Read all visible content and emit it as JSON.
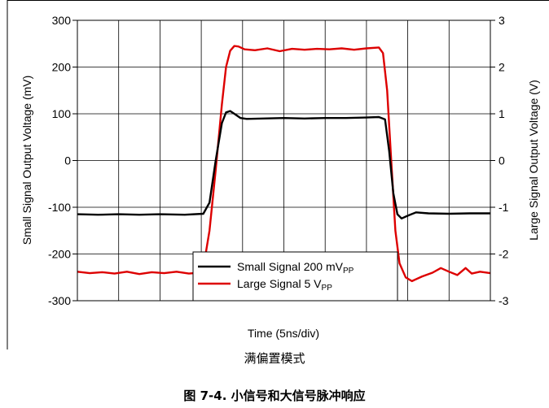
{
  "chart_data": {
    "type": "line",
    "xlabel": "Time (5ns/div)",
    "ylabel": "Small Signal Output Voltage (mV)",
    "y2label": "Large Signal Output Voltage (V)",
    "xlim": [
      0,
      10
    ],
    "ylim": [
      -300,
      300
    ],
    "y2lim": [
      -3,
      3
    ],
    "yticks": [
      "300",
      "200",
      "100",
      "0",
      "-100",
      "-200",
      "-300"
    ],
    "y2ticks": [
      "3",
      "2",
      "1",
      "0",
      "-1",
      "-2",
      "-3"
    ],
    "grid": true,
    "legend_position": "bottom-center",
    "series": [
      {
        "name_main": "Small Signal 200 mV",
        "name_sub": "PP",
        "color": "#000000",
        "axis": "left",
        "points": [
          [
            0,
            -115
          ],
          [
            0.5,
            -116
          ],
          [
            1.0,
            -115
          ],
          [
            1.5,
            -116
          ],
          [
            2.0,
            -115
          ],
          [
            2.6,
            -116
          ],
          [
            3.05,
            -114
          ],
          [
            3.2,
            -90
          ],
          [
            3.35,
            0
          ],
          [
            3.5,
            80
          ],
          [
            3.6,
            103
          ],
          [
            3.7,
            106
          ],
          [
            3.8,
            100
          ],
          [
            3.95,
            91
          ],
          [
            4.1,
            89
          ],
          [
            4.5,
            90
          ],
          [
            5.0,
            91
          ],
          [
            5.5,
            90
          ],
          [
            6.0,
            91
          ],
          [
            6.5,
            91
          ],
          [
            7.0,
            92
          ],
          [
            7.3,
            93
          ],
          [
            7.45,
            88
          ],
          [
            7.55,
            20
          ],
          [
            7.65,
            -70
          ],
          [
            7.75,
            -115
          ],
          [
            7.85,
            -124
          ],
          [
            8.0,
            -118
          ],
          [
            8.2,
            -111
          ],
          [
            8.5,
            -113
          ],
          [
            9.0,
            -114
          ],
          [
            9.5,
            -113
          ],
          [
            10,
            -113
          ]
        ]
      },
      {
        "name_main": "Large Signal 5 V",
        "name_sub": "PP",
        "color": "#dd0000",
        "axis": "right",
        "points": [
          [
            0,
            -2.38
          ],
          [
            0.3,
            -2.41
          ],
          [
            0.6,
            -2.39
          ],
          [
            0.9,
            -2.42
          ],
          [
            1.2,
            -2.38
          ],
          [
            1.5,
            -2.43
          ],
          [
            1.8,
            -2.39
          ],
          [
            2.1,
            -2.41
          ],
          [
            2.4,
            -2.38
          ],
          [
            2.7,
            -2.42
          ],
          [
            2.95,
            -2.4
          ],
          [
            3.05,
            -2.3
          ],
          [
            3.2,
            -1.5
          ],
          [
            3.35,
            -0.2
          ],
          [
            3.5,
            1.2
          ],
          [
            3.6,
            2.0
          ],
          [
            3.7,
            2.35
          ],
          [
            3.8,
            2.45
          ],
          [
            3.9,
            2.44
          ],
          [
            4.05,
            2.38
          ],
          [
            4.3,
            2.36
          ],
          [
            4.6,
            2.4
          ],
          [
            4.9,
            2.34
          ],
          [
            5.2,
            2.39
          ],
          [
            5.5,
            2.37
          ],
          [
            5.8,
            2.39
          ],
          [
            6.1,
            2.38
          ],
          [
            6.4,
            2.4
          ],
          [
            6.7,
            2.37
          ],
          [
            7.0,
            2.4
          ],
          [
            7.3,
            2.42
          ],
          [
            7.4,
            2.3
          ],
          [
            7.5,
            1.5
          ],
          [
            7.6,
            0.0
          ],
          [
            7.7,
            -1.5
          ],
          [
            7.8,
            -2.2
          ],
          [
            7.95,
            -2.5
          ],
          [
            8.1,
            -2.58
          ],
          [
            8.35,
            -2.48
          ],
          [
            8.6,
            -2.4
          ],
          [
            8.8,
            -2.3
          ],
          [
            9.0,
            -2.38
          ],
          [
            9.2,
            -2.45
          ],
          [
            9.4,
            -2.3
          ],
          [
            9.55,
            -2.42
          ],
          [
            9.75,
            -2.38
          ],
          [
            10,
            -2.41
          ]
        ]
      }
    ]
  },
  "caption": {
    "subtitle": "满偏置模式",
    "figure": "图 7-4. 小信号和大信号脉冲响应"
  }
}
